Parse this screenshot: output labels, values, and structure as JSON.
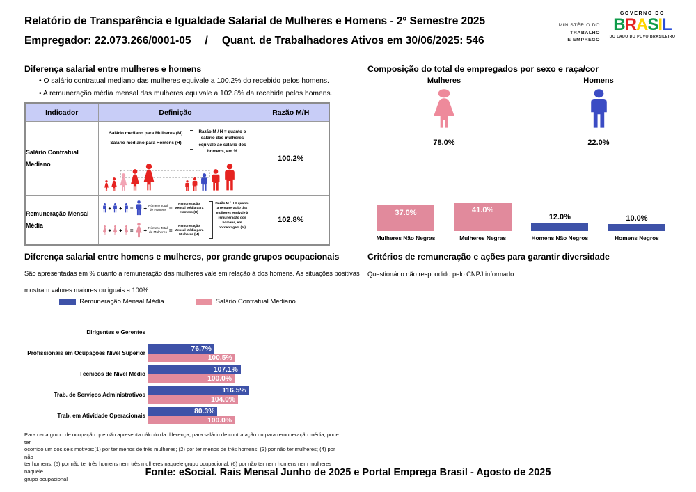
{
  "header": {
    "title": "Relatório de Transparência e Igualdade Salarial de Mulheres e Homens - 2º Semestre 2025",
    "employer": "Empregador: 22.073.266/0001-05",
    "separator": "/",
    "active_workers": "Quant. de Trabalhadores Ativos em 30/06/2025: 546",
    "logo": {
      "ministry_line1": "MINISTÉRIO DO",
      "ministry_line2": "TRABALHO",
      "ministry_line3": "E EMPREGO",
      "governo": "GOVERNO DO",
      "brasil_letters": [
        "B",
        "R",
        "A",
        "S",
        "I",
        "L"
      ],
      "tagline": "DO LADO DO POVO BRASILEIRO"
    }
  },
  "salary_diff": {
    "heading": "Diferença salarial entre mulheres e homens",
    "bullets": [
      "O salário contratual mediano das mulheres equivale a 100.2% do recebido pelos homens.",
      "A remuneração média mensal das mulheres equivale a 102.8% da recebida pelos homens."
    ],
    "table": {
      "headers": [
        "Indicador",
        "Definição",
        "Razão M/H"
      ],
      "rows": [
        {
          "indicator": "Salário Contratual Mediano",
          "ratio": "100.2%"
        },
        {
          "indicator": "Remuneração Mensal Média",
          "ratio": "102.8%"
        }
      ],
      "row1_diagram": {
        "label_m": "Salário mediano para Mulheres (M)",
        "label_h": "Salário mediano para Homens (H)",
        "note": "Razão M / H = quanto o salário das mulheres equivale ao salário dos homens, em %"
      },
      "row2_diagram": {
        "op_plus": "+",
        "op_eq": "=",
        "op_div": "÷",
        "men_divisor": "Número Total de Homens",
        "men_result": "Remuneração Mensal Média para Homens (H)",
        "women_divisor": "Número Total de Mulheres",
        "women_result": "Remuneração Mensal Média para Mulheres (M)",
        "note": "Razão M / H = quanto a remuneração das mulheres equivale à remuneração dos homens, em porcentagem (%)"
      }
    }
  },
  "composition": {
    "heading": "Composição do total de empregados por sexo e raça/cor",
    "women_label": "Mulheres",
    "women_pct": "78.0%",
    "men_label": "Homens",
    "men_pct": "22.0%"
  },
  "occupational": {
    "heading": "Diferença salarial entre homens e mulheres, por grande grupos ocupacionais",
    "description_lines": [
      "São apresentadas em % quanto a remuneração das mulheres vale em relação à dos homens. As situações positivas",
      "mostram valores maiores ou iguais a 100%"
    ],
    "footnote_lines": [
      "Para cada grupo de ocupação que não apresenta cálculo da diferença, para salário de contratação ou para remuneração média, pode ter",
      "ocorrido um dos seis motivos:(1) por ter menos de três mulheres; (2) por ter menos de três homens; (3) por não ter mulheres; (4) por não",
      "ter homens; (5) por não ter três homens nem três mulheres naquele grupo ocupacional; (6) por não ter nem homens nem mulheres naquele",
      "grupo ocupacional"
    ]
  },
  "criteria": {
    "heading": "Critérios de remuneração e ações para garantir diversidade",
    "text": "Questionário não respondido pelo CNPJ informado."
  },
  "footer": "Fonte: eSocial. Rais Mensal Junho de 2025 e Portal Emprega Brasil - Agosto de 2025",
  "colors": {
    "pink_bar": "#e18a9c",
    "blue_bar": "#3e52a8",
    "icon_pink": "#ee8a9b",
    "icon_blue": "#3b4cc4",
    "diagram_red": "#e62320",
    "highlight_pink": "#f2a4b4",
    "table_header_bg": "#c8cdf7"
  },
  "chart_data": [
    {
      "type": "bar",
      "title": "Composição do total de empregados por sexo e raça/cor",
      "gender_split": {
        "categories": [
          "Mulheres",
          "Homens"
        ],
        "values": [
          78.0,
          22.0
        ]
      },
      "categories": [
        "Mulheres Não Negras",
        "Mulheres Negras",
        "Homens Não Negros",
        "Homens Negros"
      ],
      "values": [
        37.0,
        41.0,
        12.0,
        10.0
      ],
      "unit": "%",
      "bar_colors": [
        "pink",
        "pink",
        "blue",
        "blue"
      ],
      "legend_position": "none",
      "grid": false
    },
    {
      "type": "bar",
      "orientation": "horizontal",
      "title": "Diferença salarial entre homens e mulheres, por grande grupos ocupacionais",
      "categories": [
        "Dirigentes e Gerentes",
        "Profissionais em Ocupações Nível Superior",
        "Técnicos de Nível Médio",
        "Trab. de Serviços Administrativos",
        "Trab. em Atividade Operacionais"
      ],
      "series": [
        {
          "name": "Remuneração Mensal Média",
          "color": "#3e52a8",
          "values": [
            null,
            76.7,
            107.1,
            116.5,
            80.3
          ]
        },
        {
          "name": "Salário Contratual Mediano",
          "color": "#e18a9c",
          "values": [
            null,
            100.5,
            100.0,
            104.0,
            100.0
          ]
        }
      ],
      "unit": "%",
      "xlim": [
        0,
        130
      ],
      "grid": false,
      "legend_position": "top-center",
      "value_labels": "inside-end"
    }
  ]
}
